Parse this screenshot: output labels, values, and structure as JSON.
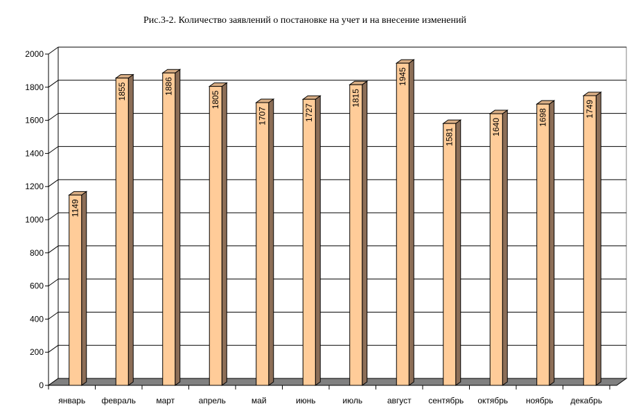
{
  "chart_data": {
    "type": "bar",
    "title": "Рис.3-2. Количество заявлений о постановке на учет и на внесение изменений",
    "categories": [
      "январь",
      "февраль",
      "март",
      "апрель",
      "май",
      "июнь",
      "июль",
      "август",
      "сентябрь",
      "октябрь",
      "ноябрь",
      "декабрь"
    ],
    "values": [
      1149,
      1855,
      1886,
      1805,
      1707,
      1727,
      1815,
      1945,
      1581,
      1640,
      1698,
      1749
    ],
    "y_ticks": [
      "0",
      "200",
      "400",
      "600",
      "800",
      "1000",
      "1200",
      "1400",
      "1600",
      "1800",
      "2000"
    ],
    "ylim": [
      0,
      2000
    ],
    "grid": true,
    "style": "3d-column",
    "bar_color": "#FFCC99",
    "bar_side_color": "#8C6E57",
    "bar_top_color": "#D9AE85",
    "floor_color": "#808080"
  }
}
